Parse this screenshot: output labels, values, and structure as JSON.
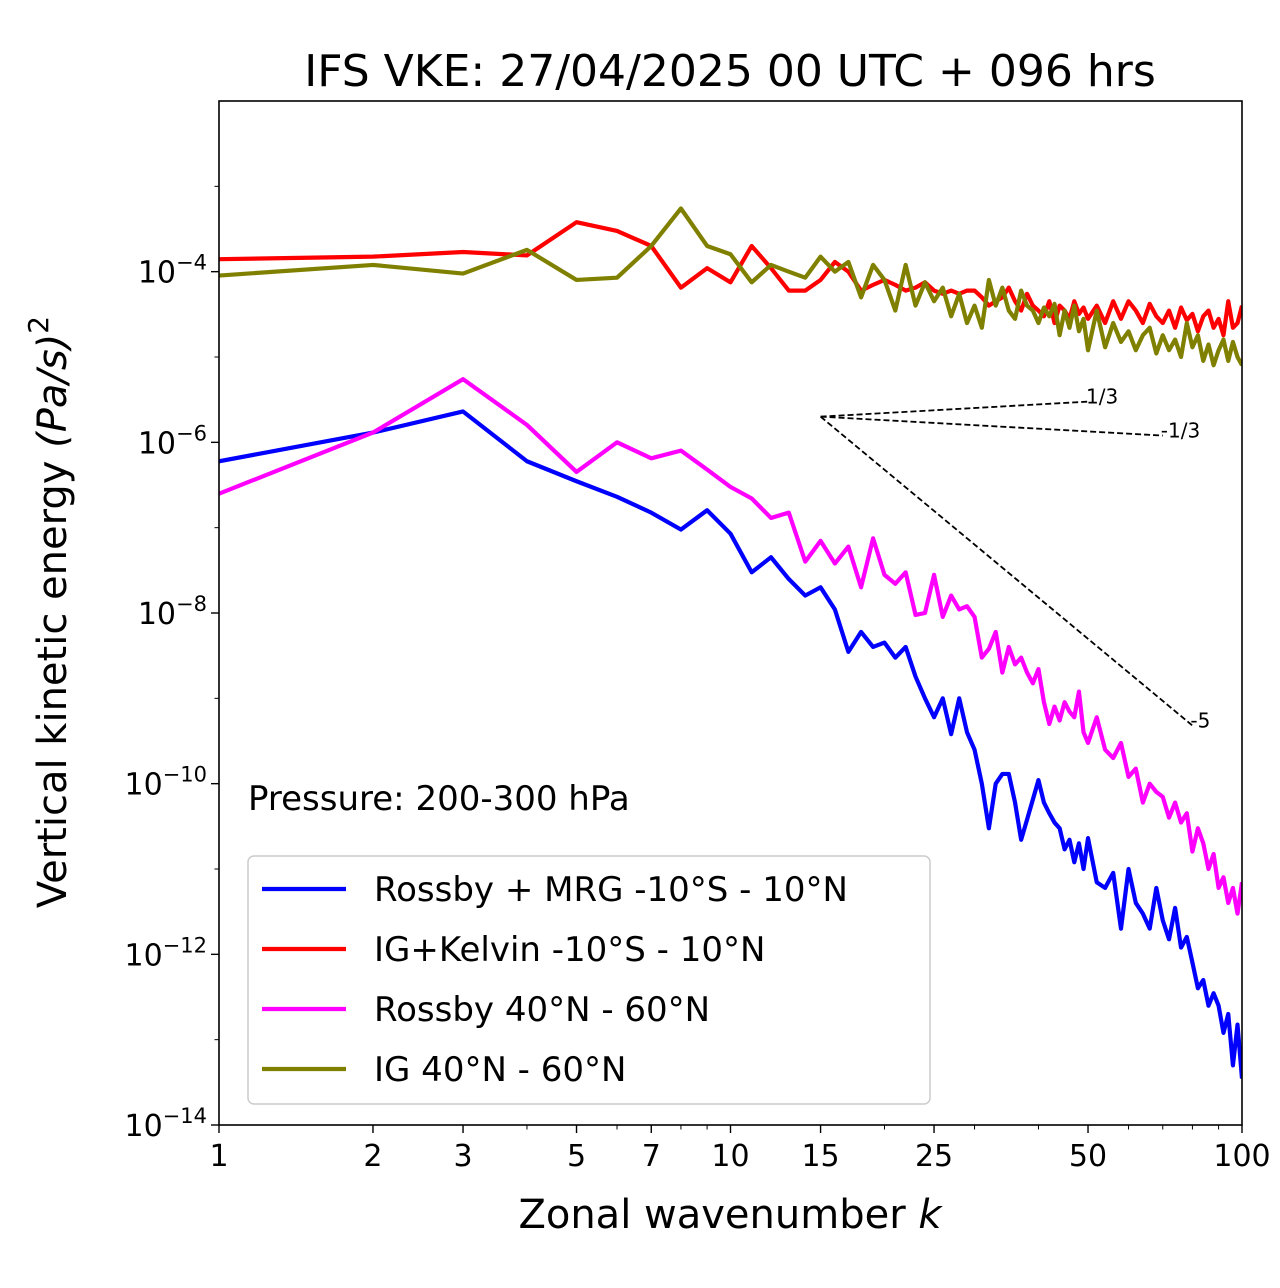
{
  "chart_data": {
    "type": "line",
    "title": "IFS VKE: 27/04/2025 00 UTC + 096 hrs",
    "xlabel": "Zonal wavenumber",
    "xlabel_var": "k",
    "ylabel": "Vertical kinetic energy",
    "ylabel_math": "(Pa/s)",
    "ylabel_exp": "2",
    "x_scale": "log",
    "y_scale": "log",
    "xlim": [
      1,
      100
    ],
    "ylim": [
      1e-14,
      0.01
    ],
    "x_ticks": [
      1,
      2,
      3,
      5,
      7,
      10,
      15,
      25,
      50,
      100
    ],
    "x_tick_labels": [
      "1",
      "2",
      "3",
      "5",
      "7",
      "10",
      "15",
      "25",
      "50",
      "100"
    ],
    "y_ticks": [
      1e-14,
      1e-12,
      1e-10,
      1e-08,
      1e-06,
      0.0001
    ],
    "y_tick_base": "10",
    "y_tick_exps": [
      "−14",
      "−12",
      "−10",
      "−8",
      "−6",
      "−4"
    ],
    "annotation": "Pressure: 200-300 hPa",
    "legend_placement": "lower-left",
    "grid": false,
    "series": [
      {
        "name": "Rossby + MRG -10°S - 10°N",
        "color": "#0000ff",
        "x": [
          1,
          2,
          3,
          4,
          5,
          6,
          7,
          8,
          9,
          10,
          11,
          12,
          13,
          14,
          15,
          16,
          17,
          18,
          19,
          20,
          21,
          22,
          23,
          24,
          25,
          26,
          27,
          28,
          29,
          30,
          31,
          32,
          33,
          34,
          35,
          36,
          37,
          38,
          39,
          40,
          41,
          42,
          43,
          44,
          45,
          46,
          47,
          48,
          49,
          50,
          52,
          54,
          56,
          58,
          60,
          62,
          64,
          66,
          68,
          70,
          72,
          74,
          76,
          78,
          80,
          82,
          84,
          86,
          88,
          90,
          92,
          94,
          96,
          98,
          100
        ],
        "y": [
          6e-07,
          1.3e-06,
          2.3e-06,
          6e-07,
          3.5e-07,
          2.3e-07,
          1.5e-07,
          9.5e-08,
          1.6e-07,
          8.5e-08,
          3e-08,
          4.5e-08,
          2.5e-08,
          1.6e-08,
          2e-08,
          1.1e-08,
          3.5e-09,
          6e-09,
          4e-09,
          4.5e-09,
          3e-09,
          4e-09,
          1.8e-09,
          1e-09,
          6e-10,
          1e-09,
          3.8e-10,
          1e-09,
          4e-10,
          2.5e-10,
          1e-10,
          3e-11,
          1e-10,
          1.3e-10,
          1.3e-10,
          6e-11,
          2.2e-11,
          3.8e-11,
          6.5e-11,
          1.1e-10,
          6e-11,
          4.5e-11,
          3.5e-11,
          3e-11,
          1.7e-11,
          2.2e-11,
          1.2e-11,
          2e-11,
          1e-11,
          2.3e-11,
          7e-12,
          6e-12,
          9e-12,
          2e-12,
          1e-11,
          4e-12,
          3e-12,
          2e-12,
          6e-12,
          2.5e-12,
          1.5e-12,
          3.5e-12,
          1.2e-12,
          1.6e-12,
          8e-13,
          4e-13,
          5e-13,
          2.5e-13,
          3.5e-13,
          2.5e-13,
          1.2e-13,
          2e-13,
          5e-14,
          1.5e-13,
          3.5e-14
        ]
      },
      {
        "name": "IG+Kelvin -10°S - 10°N",
        "color": "#ff0000",
        "x": [
          1,
          2,
          3,
          4,
          5,
          6,
          7,
          8,
          9,
          10,
          11,
          12,
          13,
          14,
          15,
          16,
          17,
          18,
          19,
          20,
          21,
          22,
          23,
          24,
          25,
          26,
          27,
          28,
          29,
          30,
          31,
          32,
          33,
          34,
          35,
          36,
          37,
          38,
          39,
          40,
          41,
          42,
          43,
          44,
          45,
          46,
          47,
          48,
          49,
          50,
          52,
          54,
          56,
          58,
          60,
          62,
          64,
          66,
          68,
          70,
          72,
          74,
          76,
          78,
          80,
          82,
          84,
          86,
          88,
          90,
          92,
          94,
          96,
          98,
          100
        ],
        "y": [
          0.00014,
          0.00015,
          0.00017,
          0.000155,
          0.00038,
          0.0003,
          0.0002,
          6.5e-05,
          0.00011,
          7.5e-05,
          0.0002,
          0.00011,
          6e-05,
          6e-05,
          8e-05,
          0.00013,
          0.0001,
          6e-05,
          7e-05,
          8e-05,
          7e-05,
          6e-05,
          6.5e-05,
          7.5e-05,
          6e-05,
          5.5e-05,
          6e-05,
          5.5e-05,
          6e-05,
          6e-05,
          5e-05,
          4e-05,
          4.5e-05,
          5e-05,
          6.5e-05,
          4.5e-05,
          3.5e-05,
          5.5e-05,
          4e-05,
          3.5e-05,
          3e-05,
          4.5e-05,
          2.5e-05,
          4e-05,
          3.5e-05,
          2.8e-05,
          4.5e-05,
          3.2e-05,
          3.8e-05,
          2.8e-05,
          4e-05,
          2.5e-05,
          4.5e-05,
          2.8e-05,
          4.5e-05,
          3.5e-05,
          2.5e-05,
          4.2e-05,
          3e-05,
          2.5e-05,
          3.5e-05,
          2.2e-05,
          3.8e-05,
          2.7e-05,
          3.2e-05,
          2e-05,
          3e-05,
          3.5e-05,
          2.2e-05,
          2.8e-05,
          1.8e-05,
          4.5e-05,
          2.2e-05,
          2.5e-05,
          4e-05
        ]
      },
      {
        "name": "Rossby 40°N - 60°N",
        "color": "#ff00ff",
        "x": [
          1,
          2,
          3,
          4,
          5,
          6,
          7,
          8,
          9,
          10,
          11,
          12,
          13,
          14,
          15,
          16,
          17,
          18,
          19,
          20,
          21,
          22,
          23,
          24,
          25,
          26,
          27,
          28,
          29,
          30,
          31,
          32,
          33,
          34,
          35,
          36,
          37,
          38,
          39,
          40,
          41,
          42,
          43,
          44,
          45,
          46,
          47,
          48,
          49,
          50,
          52,
          54,
          56,
          58,
          60,
          62,
          64,
          66,
          68,
          70,
          72,
          74,
          76,
          78,
          80,
          82,
          84,
          86,
          88,
          90,
          92,
          94,
          96,
          98,
          100
        ],
        "y": [
          2.5e-07,
          1.3e-06,
          5.5e-06,
          1.6e-06,
          4.5e-07,
          1e-06,
          6.5e-07,
          8e-07,
          4.8e-07,
          3e-07,
          2.2e-07,
          1.3e-07,
          1.5e-07,
          4e-08,
          7e-08,
          3.8e-08,
          6e-08,
          2e-08,
          7.5e-08,
          2.8e-08,
          2.2e-08,
          3e-08,
          9.5e-09,
          1e-08,
          2.8e-08,
          9e-09,
          1.6e-08,
          1.1e-08,
          1.2e-08,
          9e-09,
          3e-09,
          3.8e-09,
          6e-09,
          2e-09,
          4e-09,
          2.5e-09,
          3e-09,
          2e-09,
          1.5e-09,
          2.2e-09,
          9e-10,
          5e-10,
          8e-10,
          5.5e-10,
          9e-10,
          7e-10,
          6e-10,
          1.2e-09,
          4e-10,
          3e-10,
          6e-10,
          2.5e-10,
          2e-10,
          3e-10,
          1.2e-10,
          1.5e-10,
          6e-11,
          1e-10,
          8e-11,
          7e-11,
          4e-11,
          6e-11,
          3.5e-11,
          4.5e-11,
          1.6e-11,
          3e-11,
          2e-11,
          1e-11,
          1.5e-11,
          6e-12,
          8e-12,
          4e-12,
          6e-12,
          3e-12,
          7e-12
        ]
      },
      {
        "name": "IG 40°N - 60°N",
        "color": "#808000",
        "x": [
          1,
          2,
          3,
          4,
          5,
          6,
          7,
          8,
          9,
          10,
          11,
          12,
          13,
          14,
          15,
          16,
          17,
          18,
          19,
          20,
          21,
          22,
          23,
          24,
          25,
          26,
          27,
          28,
          29,
          30,
          31,
          32,
          33,
          34,
          35,
          36,
          37,
          38,
          39,
          40,
          41,
          42,
          43,
          44,
          45,
          46,
          47,
          48,
          49,
          50,
          52,
          54,
          56,
          58,
          60,
          62,
          64,
          66,
          68,
          70,
          72,
          74,
          76,
          78,
          80,
          82,
          84,
          86,
          88,
          90,
          92,
          94,
          96,
          98,
          100
        ],
        "y": [
          9e-05,
          0.00012,
          9.5e-05,
          0.00018,
          8e-05,
          8.5e-05,
          0.0002,
          0.00055,
          0.0002,
          0.00016,
          7.5e-05,
          0.00012,
          0.0001,
          8.5e-05,
          0.00015,
          0.0001,
          0.00013,
          5e-05,
          0.00012,
          8e-05,
          3.5e-05,
          0.00012,
          4e-05,
          7.5e-05,
          4.5e-05,
          6.5e-05,
          3e-05,
          5.5e-05,
          2.5e-05,
          4e-05,
          2.2e-05,
          8e-05,
          4e-05,
          6.5e-05,
          3.5e-05,
          2.8e-05,
          6e-05,
          4e-05,
          3.5e-05,
          2.5e-05,
          3.8e-05,
          3e-05,
          4.2e-05,
          1.8e-05,
          3.5e-05,
          2.2e-05,
          4e-05,
          2e-05,
          2.8e-05,
          1.2e-05,
          3.5e-05,
          1.3e-05,
          2.5e-05,
          1.5e-05,
          2e-05,
          1.2e-05,
          1.8e-05,
          2.2e-05,
          1.1e-05,
          1.8e-05,
          1.2e-05,
          1.6e-05,
          1e-05,
          2.5e-05,
          1.3e-05,
          1.8e-05,
          9e-06,
          1.4e-05,
          8e-06,
          1.2e-05,
          1.6e-05,
          9e-06,
          1.5e-05,
          1e-05,
          8e-06
        ]
      }
    ],
    "reference_slopes": [
      {
        "label": "1/3",
        "x": [
          15,
          50
        ],
        "y": [
          2e-06,
          3e-06
        ]
      },
      {
        "label": "-1/3",
        "x": [
          15,
          70
        ],
        "y": [
          2e-06,
          1.2e-06
        ]
      },
      {
        "label": "-5",
        "x": [
          15,
          80
        ],
        "y": [
          2e-06,
          4.8e-10
        ]
      }
    ]
  }
}
